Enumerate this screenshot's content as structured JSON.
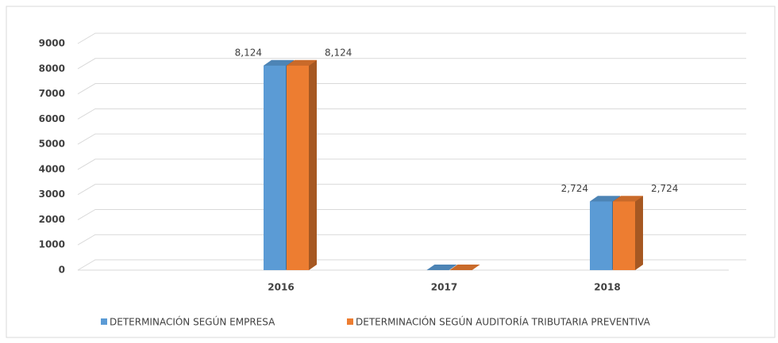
{
  "chart_data": {
    "type": "bar3d",
    "categories": [
      "2016",
      "2017",
      "2018"
    ],
    "series": [
      {
        "name": "DETERMINACIÓN SEGÚN EMPRESA",
        "color": "#5b9bd5",
        "values": [
          8124,
          0,
          2724
        ],
        "value_labels": [
          "8,124",
          null,
          "2,724"
        ]
      },
      {
        "name": "DETERMINACIÓN SEGÚN AUDITORÍA TRIBUTARIA PREVENTIVA",
        "color": "#ed7d31",
        "values": [
          8124,
          0,
          2724
        ],
        "value_labels": [
          "8,124",
          null,
          "2,724"
        ]
      }
    ],
    "ylim": [
      0,
      9000
    ],
    "yticks": [
      0,
      1000,
      2000,
      3000,
      4000,
      5000,
      6000,
      7000,
      8000,
      9000
    ],
    "grid": true,
    "legend": "bottom"
  }
}
